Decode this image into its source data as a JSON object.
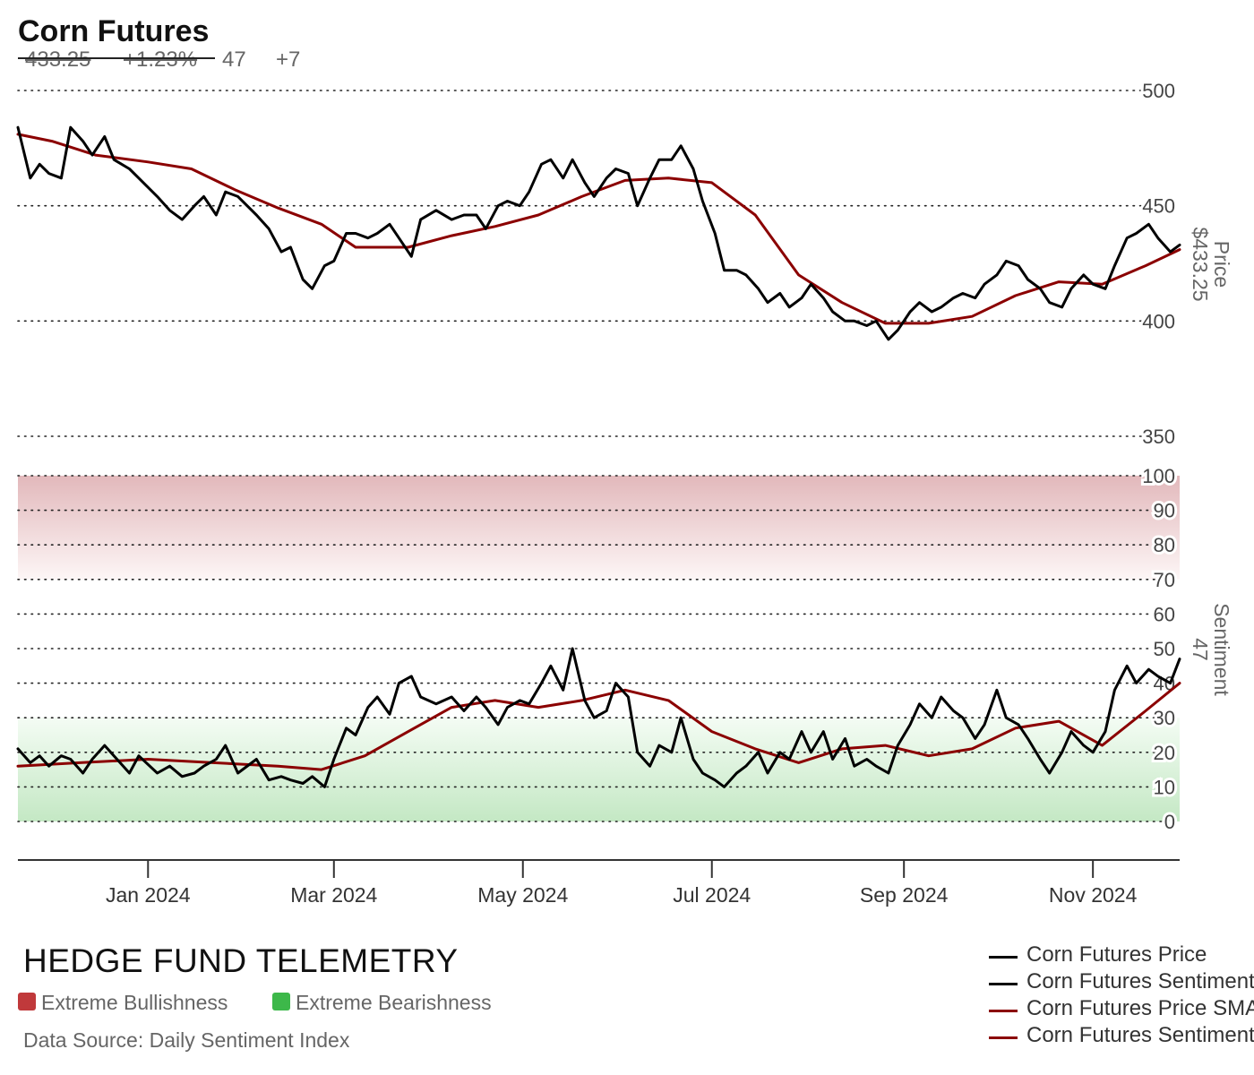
{
  "header": {
    "title": "Corn Futures",
    "price": "433.25",
    "change_pct": "+1.23%",
    "sentiment": "47",
    "sentiment_change": "+7"
  },
  "footer": {
    "brand": "HEDGE FUND TELEMETRY",
    "legend_bull": "Extreme Bullishness",
    "legend_bear": "Extreme Bearishness",
    "source": "Data Source: Daily Sentiment Index",
    "bull_color": "#c0393b",
    "bear_color": "#3db84a"
  },
  "chart_data": {
    "type": "line",
    "x_ticks": [
      "Jan 2024",
      "Mar 2024",
      "May 2024",
      "Jul 2024",
      "Sep 2024",
      "Nov 2024"
    ],
    "x_range": [
      "2023-11-20",
      "2024-11-29"
    ],
    "grid": "dotted horizontal",
    "legend_position": "bottom-right",
    "price_axis": {
      "label": "Price",
      "current_label": "$433.25",
      "ticks": [
        350,
        400,
        450,
        500
      ],
      "range": [
        350,
        500
      ]
    },
    "sentiment_axis": {
      "label": "Sentiment",
      "current_label": "47",
      "ticks": [
        0,
        10,
        20,
        30,
        40,
        50,
        60,
        70,
        80,
        90,
        100
      ],
      "range": [
        0,
        100
      ],
      "extreme_bull_zone": [
        70,
        100
      ],
      "extreme_bear_zone": [
        0,
        30
      ]
    },
    "series": [
      {
        "name": "Corn Futures Price",
        "color": "#000000",
        "axis": "price",
        "points": [
          [
            "2023-11-20",
            484
          ],
          [
            "2023-11-24",
            462
          ],
          [
            "2023-11-27",
            468
          ],
          [
            "2023-11-30",
            464
          ],
          [
            "2023-12-04",
            462
          ],
          [
            "2023-12-07",
            484
          ],
          [
            "2023-12-11",
            478
          ],
          [
            "2023-12-14",
            472
          ],
          [
            "2023-12-18",
            480
          ],
          [
            "2023-12-21",
            470
          ],
          [
            "2023-12-26",
            466
          ],
          [
            "2023-12-29",
            462
          ],
          [
            "2024-01-04",
            454
          ],
          [
            "2024-01-08",
            448
          ],
          [
            "2024-01-12",
            444
          ],
          [
            "2024-01-16",
            450
          ],
          [
            "2024-01-19",
            454
          ],
          [
            "2024-01-23",
            446
          ],
          [
            "2024-01-26",
            456
          ],
          [
            "2024-01-30",
            454
          ],
          [
            "2024-02-05",
            446
          ],
          [
            "2024-02-09",
            440
          ],
          [
            "2024-02-13",
            430
          ],
          [
            "2024-02-16",
            432
          ],
          [
            "2024-02-20",
            418
          ],
          [
            "2024-02-23",
            414
          ],
          [
            "2024-02-27",
            424
          ],
          [
            "2024-03-01",
            426
          ],
          [
            "2024-03-05",
            438
          ],
          [
            "2024-03-08",
            438
          ],
          [
            "2024-03-12",
            436
          ],
          [
            "2024-03-15",
            438
          ],
          [
            "2024-03-19",
            442
          ],
          [
            "2024-03-22",
            436
          ],
          [
            "2024-03-26",
            428
          ],
          [
            "2024-03-29",
            444
          ],
          [
            "2024-04-03",
            448
          ],
          [
            "2024-04-08",
            444
          ],
          [
            "2024-04-12",
            446
          ],
          [
            "2024-04-16",
            446
          ],
          [
            "2024-04-19",
            440
          ],
          [
            "2024-04-23",
            450
          ],
          [
            "2024-04-26",
            452
          ],
          [
            "2024-04-30",
            450
          ],
          [
            "2024-05-03",
            456
          ],
          [
            "2024-05-07",
            468
          ],
          [
            "2024-05-10",
            470
          ],
          [
            "2024-05-14",
            462
          ],
          [
            "2024-05-17",
            470
          ],
          [
            "2024-05-21",
            460
          ],
          [
            "2024-05-24",
            454
          ],
          [
            "2024-05-28",
            462
          ],
          [
            "2024-05-31",
            466
          ],
          [
            "2024-06-04",
            464
          ],
          [
            "2024-06-07",
            450
          ],
          [
            "2024-06-11",
            462
          ],
          [
            "2024-06-14",
            470
          ],
          [
            "2024-06-18",
            470
          ],
          [
            "2024-06-21",
            476
          ],
          [
            "2024-06-25",
            466
          ],
          [
            "2024-06-28",
            452
          ],
          [
            "2024-07-02",
            438
          ],
          [
            "2024-07-05",
            422
          ],
          [
            "2024-07-09",
            422
          ],
          [
            "2024-07-12",
            420
          ],
          [
            "2024-07-16",
            414
          ],
          [
            "2024-07-19",
            408
          ],
          [
            "2024-07-23",
            412
          ],
          [
            "2024-07-26",
            406
          ],
          [
            "2024-07-30",
            410
          ],
          [
            "2024-08-02",
            416
          ],
          [
            "2024-08-06",
            410
          ],
          [
            "2024-08-09",
            404
          ],
          [
            "2024-08-13",
            400
          ],
          [
            "2024-08-16",
            400
          ],
          [
            "2024-08-20",
            398
          ],
          [
            "2024-08-23",
            400
          ],
          [
            "2024-08-27",
            392
          ],
          [
            "2024-08-30",
            396
          ],
          [
            "2024-09-03",
            404
          ],
          [
            "2024-09-06",
            408
          ],
          [
            "2024-09-10",
            404
          ],
          [
            "2024-09-13",
            406
          ],
          [
            "2024-09-17",
            410
          ],
          [
            "2024-09-20",
            412
          ],
          [
            "2024-09-24",
            410
          ],
          [
            "2024-09-27",
            416
          ],
          [
            "2024-10-01",
            420
          ],
          [
            "2024-10-04",
            426
          ],
          [
            "2024-10-08",
            424
          ],
          [
            "2024-10-11",
            418
          ],
          [
            "2024-10-15",
            414
          ],
          [
            "2024-10-18",
            408
          ],
          [
            "2024-10-22",
            406
          ],
          [
            "2024-10-25",
            414
          ],
          [
            "2024-10-29",
            420
          ],
          [
            "2024-11-01",
            416
          ],
          [
            "2024-11-05",
            414
          ],
          [
            "2024-11-08",
            424
          ],
          [
            "2024-11-12",
            436
          ],
          [
            "2024-11-15",
            438
          ],
          [
            "2024-11-19",
            442
          ],
          [
            "2024-11-22",
            436
          ],
          [
            "2024-11-26",
            430
          ],
          [
            "2024-11-29",
            433
          ]
        ]
      },
      {
        "name": "Corn Futures Sentiment",
        "color": "#000000",
        "axis": "sentiment",
        "points": [
          [
            "2023-11-20",
            21
          ],
          [
            "2023-11-24",
            17
          ],
          [
            "2023-11-27",
            19
          ],
          [
            "2023-11-30",
            16
          ],
          [
            "2023-12-04",
            19
          ],
          [
            "2023-12-07",
            18
          ],
          [
            "2023-12-11",
            14
          ],
          [
            "2023-12-14",
            18
          ],
          [
            "2023-12-18",
            22
          ],
          [
            "2023-12-21",
            19
          ],
          [
            "2023-12-26",
            14
          ],
          [
            "2023-12-29",
            19
          ],
          [
            "2024-01-04",
            14
          ],
          [
            "2024-01-08",
            16
          ],
          [
            "2024-01-12",
            13
          ],
          [
            "2024-01-16",
            14
          ],
          [
            "2024-01-19",
            16
          ],
          [
            "2024-01-23",
            18
          ],
          [
            "2024-01-26",
            22
          ],
          [
            "2024-01-30",
            14
          ],
          [
            "2024-02-05",
            18
          ],
          [
            "2024-02-09",
            12
          ],
          [
            "2024-02-13",
            13
          ],
          [
            "2024-02-16",
            12
          ],
          [
            "2024-02-20",
            11
          ],
          [
            "2024-02-23",
            13
          ],
          [
            "2024-02-27",
            10
          ],
          [
            "2024-03-01",
            18
          ],
          [
            "2024-03-05",
            27
          ],
          [
            "2024-03-08",
            25
          ],
          [
            "2024-03-12",
            33
          ],
          [
            "2024-03-15",
            36
          ],
          [
            "2024-03-19",
            31
          ],
          [
            "2024-03-22",
            40
          ],
          [
            "2024-03-26",
            42
          ],
          [
            "2024-03-29",
            36
          ],
          [
            "2024-04-03",
            34
          ],
          [
            "2024-04-08",
            36
          ],
          [
            "2024-04-12",
            32
          ],
          [
            "2024-04-16",
            36
          ],
          [
            "2024-04-19",
            33
          ],
          [
            "2024-04-23",
            28
          ],
          [
            "2024-04-26",
            33
          ],
          [
            "2024-04-30",
            35
          ],
          [
            "2024-05-03",
            34
          ],
          [
            "2024-05-07",
            40
          ],
          [
            "2024-05-10",
            45
          ],
          [
            "2024-05-14",
            38
          ],
          [
            "2024-05-17",
            50
          ],
          [
            "2024-05-21",
            35
          ],
          [
            "2024-05-24",
            30
          ],
          [
            "2024-05-28",
            32
          ],
          [
            "2024-05-31",
            40
          ],
          [
            "2024-06-04",
            36
          ],
          [
            "2024-06-07",
            20
          ],
          [
            "2024-06-11",
            16
          ],
          [
            "2024-06-14",
            22
          ],
          [
            "2024-06-18",
            20
          ],
          [
            "2024-06-21",
            30
          ],
          [
            "2024-06-25",
            18
          ],
          [
            "2024-06-28",
            14
          ],
          [
            "2024-07-02",
            12
          ],
          [
            "2024-07-05",
            10
          ],
          [
            "2024-07-09",
            14
          ],
          [
            "2024-07-12",
            16
          ],
          [
            "2024-07-16",
            20
          ],
          [
            "2024-07-19",
            14
          ],
          [
            "2024-07-23",
            20
          ],
          [
            "2024-07-26",
            18
          ],
          [
            "2024-07-30",
            26
          ],
          [
            "2024-08-02",
            20
          ],
          [
            "2024-08-06",
            26
          ],
          [
            "2024-08-09",
            18
          ],
          [
            "2024-08-13",
            24
          ],
          [
            "2024-08-16",
            16
          ],
          [
            "2024-08-20",
            18
          ],
          [
            "2024-08-23",
            16
          ],
          [
            "2024-08-27",
            14
          ],
          [
            "2024-08-30",
            22
          ],
          [
            "2024-09-03",
            28
          ],
          [
            "2024-09-06",
            34
          ],
          [
            "2024-09-10",
            30
          ],
          [
            "2024-09-13",
            36
          ],
          [
            "2024-09-17",
            32
          ],
          [
            "2024-09-20",
            30
          ],
          [
            "2024-09-24",
            24
          ],
          [
            "2024-09-27",
            28
          ],
          [
            "2024-10-01",
            38
          ],
          [
            "2024-10-04",
            30
          ],
          [
            "2024-10-08",
            28
          ],
          [
            "2024-10-11",
            24
          ],
          [
            "2024-10-15",
            18
          ],
          [
            "2024-10-18",
            14
          ],
          [
            "2024-10-22",
            20
          ],
          [
            "2024-10-25",
            26
          ],
          [
            "2024-10-29",
            22
          ],
          [
            "2024-11-01",
            20
          ],
          [
            "2024-11-05",
            26
          ],
          [
            "2024-11-08",
            38
          ],
          [
            "2024-11-12",
            45
          ],
          [
            "2024-11-15",
            40
          ],
          [
            "2024-11-19",
            44
          ],
          [
            "2024-11-22",
            42
          ],
          [
            "2024-11-26",
            40
          ],
          [
            "2024-11-29",
            47
          ]
        ]
      },
      {
        "name": "Corn Futures Price SMA",
        "color": "#8b0000",
        "axis": "price",
        "points": [
          [
            "2023-11-20",
            481
          ],
          [
            "2023-12-01",
            478
          ],
          [
            "2023-12-15",
            472
          ],
          [
            "2024-01-01",
            469
          ],
          [
            "2024-01-15",
            466
          ],
          [
            "2024-01-29",
            457
          ],
          [
            "2024-02-12",
            449
          ],
          [
            "2024-02-26",
            442
          ],
          [
            "2024-03-08",
            432
          ],
          [
            "2024-03-25",
            432
          ],
          [
            "2024-04-08",
            437
          ],
          [
            "2024-04-22",
            441
          ],
          [
            "2024-05-06",
            446
          ],
          [
            "2024-05-20",
            454
          ],
          [
            "2024-06-03",
            461
          ],
          [
            "2024-06-17",
            462
          ],
          [
            "2024-07-01",
            460
          ],
          [
            "2024-07-15",
            446
          ],
          [
            "2024-07-29",
            420
          ],
          [
            "2024-08-12",
            408
          ],
          [
            "2024-08-26",
            399
          ],
          [
            "2024-09-09",
            399
          ],
          [
            "2024-09-23",
            402
          ],
          [
            "2024-10-07",
            411
          ],
          [
            "2024-10-21",
            417
          ],
          [
            "2024-11-04",
            416
          ],
          [
            "2024-11-18",
            424
          ],
          [
            "2024-11-29",
            431
          ]
        ]
      },
      {
        "name": "Corn Futures Sentiment SMA",
        "color": "#8b0000",
        "axis": "sentiment",
        "points": [
          [
            "2023-11-20",
            16
          ],
          [
            "2023-12-10",
            17
          ],
          [
            "2024-01-01",
            18
          ],
          [
            "2024-01-22",
            17
          ],
          [
            "2024-02-12",
            16
          ],
          [
            "2024-02-26",
            15
          ],
          [
            "2024-03-11",
            19
          ],
          [
            "2024-03-25",
            26
          ],
          [
            "2024-04-08",
            33
          ],
          [
            "2024-04-22",
            35
          ],
          [
            "2024-05-06",
            33
          ],
          [
            "2024-05-20",
            35
          ],
          [
            "2024-06-03",
            38
          ],
          [
            "2024-06-17",
            35
          ],
          [
            "2024-07-01",
            26
          ],
          [
            "2024-07-15",
            21
          ],
          [
            "2024-07-29",
            17
          ],
          [
            "2024-08-12",
            21
          ],
          [
            "2024-08-26",
            22
          ],
          [
            "2024-09-09",
            19
          ],
          [
            "2024-09-23",
            21
          ],
          [
            "2024-10-07",
            27
          ],
          [
            "2024-10-21",
            29
          ],
          [
            "2024-11-04",
            22
          ],
          [
            "2024-11-18",
            32
          ],
          [
            "2024-11-29",
            40
          ]
        ]
      }
    ]
  }
}
